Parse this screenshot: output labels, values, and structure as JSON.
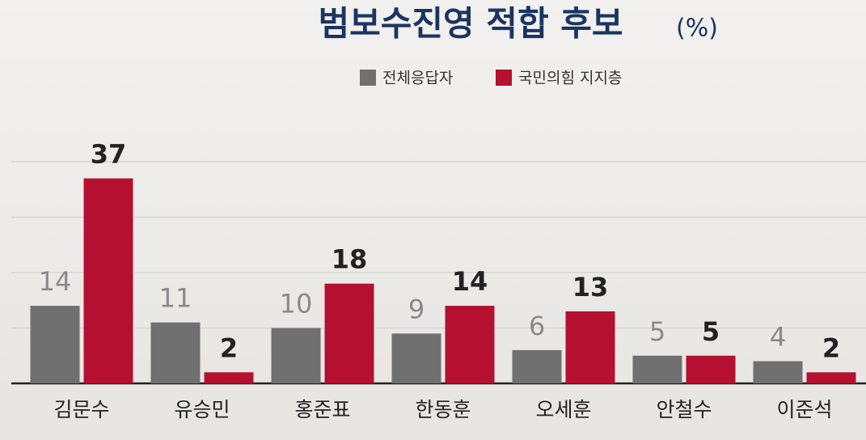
{
  "chart_data": {
    "type": "bar",
    "title": "범보수진영 적합 후보",
    "unit": "(%)",
    "categories": [
      "김문수",
      "유승민",
      "홍준표",
      "한동훈",
      "오세훈",
      "안철수",
      "이준석"
    ],
    "series": [
      {
        "name": "전체응답자",
        "color": "#707070",
        "values": [
          14,
          11,
          10,
          9,
          6,
          5,
          4
        ]
      },
      {
        "name": "국민의힘 지지층",
        "color": "#b5102f",
        "values": [
          37,
          2,
          18,
          14,
          13,
          5,
          2
        ]
      }
    ],
    "ylim": [
      0,
      40
    ],
    "yticks": [
      0,
      10,
      20,
      30,
      40
    ],
    "grid": true,
    "tick_labels": false
  }
}
